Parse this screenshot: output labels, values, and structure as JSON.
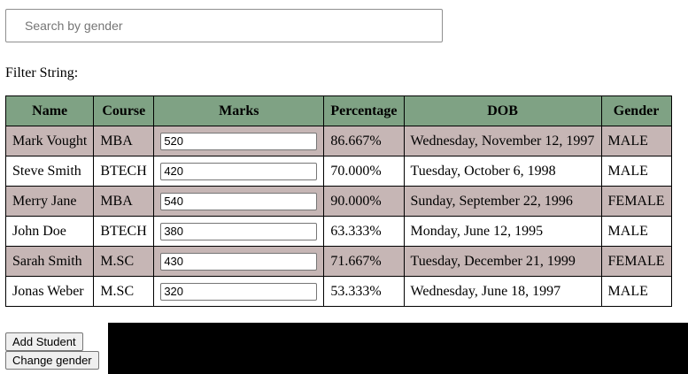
{
  "search": {
    "placeholder": "Search by gender",
    "value": ""
  },
  "filter": {
    "label": "Filter String:",
    "value": ""
  },
  "table": {
    "headers": {
      "name": "Name",
      "course": "Course",
      "marks": "Marks",
      "percentage": "Percentage",
      "dob": "DOB",
      "gender": "Gender"
    },
    "rows": [
      {
        "name": "Mark Vought",
        "course": "MBA",
        "marks": "520",
        "percentage": "86.667%",
        "dob": "Wednesday, November 12, 1997",
        "gender": "MALE"
      },
      {
        "name": "Steve Smith",
        "course": "BTECH",
        "marks": "420",
        "percentage": "70.000%",
        "dob": "Tuesday, October 6, 1998",
        "gender": "MALE"
      },
      {
        "name": "Merry Jane",
        "course": "MBA",
        "marks": "540",
        "percentage": "90.000%",
        "dob": "Sunday, September 22, 1996",
        "gender": "FEMALE"
      },
      {
        "name": "John Doe",
        "course": "BTECH",
        "marks": "380",
        "percentage": "63.333%",
        "dob": "Monday, June 12, 1995",
        "gender": "MALE"
      },
      {
        "name": "Sarah Smith",
        "course": "M.SC",
        "marks": "430",
        "percentage": "71.667%",
        "dob": "Tuesday, December 21, 1999",
        "gender": "FEMALE"
      },
      {
        "name": "Jonas Weber",
        "course": "M.SC",
        "marks": "320",
        "percentage": "53.333%",
        "dob": "Wednesday, June 18, 1997",
        "gender": "MALE"
      }
    ]
  },
  "buttons": {
    "add_student": "Add Student",
    "change_gender": "Change gender"
  },
  "colors": {
    "header_bg": "#7fa284",
    "row_shaded_bg": "#c6b6b5",
    "row_plain_bg": "#ffffff"
  }
}
